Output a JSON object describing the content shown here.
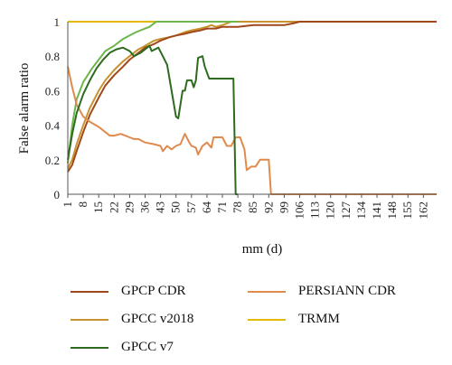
{
  "chart_data": {
    "type": "line",
    "ylabel": "False alarm ratio",
    "xlabel": "mm (d)",
    "ylim": [
      0,
      1
    ],
    "yticks": [
      "0",
      "0.2",
      "0.4",
      "0.6",
      "0.8",
      "1"
    ],
    "xticks": [
      "1",
      "8",
      "15",
      "22",
      "29",
      "36",
      "43",
      "50",
      "57",
      "64",
      "71",
      "78",
      "85",
      "92",
      "99",
      "106",
      "113",
      "120",
      "127",
      "134",
      "141",
      "148",
      "155",
      "162"
    ],
    "xlim": [
      1,
      168
    ],
    "grid": false,
    "legend_position": "bottom",
    "series": [
      {
        "name": "GPCP CDR",
        "color": "#a0481c",
        "points": [
          [
            1,
            0.13
          ],
          [
            3,
            0.17
          ],
          [
            5,
            0.25
          ],
          [
            8,
            0.36
          ],
          [
            11,
            0.46
          ],
          [
            15,
            0.56
          ],
          [
            18,
            0.63
          ],
          [
            22,
            0.69
          ],
          [
            26,
            0.74
          ],
          [
            29,
            0.78
          ],
          [
            33,
            0.82
          ],
          [
            36,
            0.85
          ],
          [
            40,
            0.87
          ],
          [
            43,
            0.89
          ],
          [
            47,
            0.91
          ],
          [
            50,
            0.92
          ],
          [
            54,
            0.93
          ],
          [
            57,
            0.94
          ],
          [
            61,
            0.95
          ],
          [
            64,
            0.96
          ],
          [
            68,
            0.96
          ],
          [
            71,
            0.97
          ],
          [
            78,
            0.97
          ],
          [
            85,
            0.98
          ],
          [
            92,
            0.98
          ],
          [
            99,
            0.98
          ],
          [
            103,
            0.99
          ],
          [
            106,
            1.0
          ],
          [
            168,
            1.0
          ]
        ]
      },
      {
        "name": "PERSIANN CDR",
        "color": "#e08a4c",
        "points": [
          [
            1,
            0.74
          ],
          [
            3,
            0.62
          ],
          [
            5,
            0.52
          ],
          [
            8,
            0.45
          ],
          [
            11,
            0.42
          ],
          [
            15,
            0.39
          ],
          [
            18,
            0.36
          ],
          [
            20,
            0.34
          ],
          [
            22,
            0.34
          ],
          [
            25,
            0.35
          ],
          [
            29,
            0.33
          ],
          [
            31,
            0.32
          ],
          [
            33,
            0.32
          ],
          [
            36,
            0.3
          ],
          [
            40,
            0.29
          ],
          [
            43,
            0.28
          ],
          [
            44,
            0.25
          ],
          [
            46,
            0.28
          ],
          [
            48,
            0.26
          ],
          [
            50,
            0.28
          ],
          [
            52,
            0.29
          ],
          [
            54,
            0.35
          ],
          [
            56,
            0.3
          ],
          [
            57,
            0.28
          ],
          [
            59,
            0.27
          ],
          [
            60,
            0.23
          ],
          [
            62,
            0.28
          ],
          [
            64,
            0.3
          ],
          [
            66,
            0.27
          ],
          [
            67,
            0.33
          ],
          [
            69,
            0.33
          ],
          [
            71,
            0.33
          ],
          [
            73,
            0.28
          ],
          [
            75,
            0.28
          ],
          [
            77,
            0.33
          ],
          [
            79,
            0.33
          ],
          [
            81,
            0.26
          ],
          [
            82,
            0.14
          ],
          [
            84,
            0.16
          ],
          [
            86,
            0.16
          ],
          [
            88,
            0.2
          ],
          [
            92,
            0.2
          ],
          [
            93,
            0.0
          ],
          [
            168,
            0.0
          ]
        ]
      },
      {
        "name": "GPCC v2018",
        "color": "#c8922e",
        "points": [
          [
            1,
            0.15
          ],
          [
            3,
            0.2
          ],
          [
            5,
            0.29
          ],
          [
            8,
            0.4
          ],
          [
            11,
            0.5
          ],
          [
            15,
            0.6
          ],
          [
            18,
            0.66
          ],
          [
            22,
            0.72
          ],
          [
            26,
            0.77
          ],
          [
            29,
            0.8
          ],
          [
            33,
            0.84
          ],
          [
            36,
            0.86
          ],
          [
            40,
            0.89
          ],
          [
            43,
            0.9
          ],
          [
            47,
            0.91
          ],
          [
            50,
            0.92
          ],
          [
            54,
            0.94
          ],
          [
            57,
            0.95
          ],
          [
            61,
            0.96
          ],
          [
            64,
            0.97
          ],
          [
            66,
            0.98
          ],
          [
            68,
            0.97
          ],
          [
            71,
            0.98
          ],
          [
            73,
            0.99
          ],
          [
            75,
            1.0
          ],
          [
            168,
            1.0
          ]
        ]
      },
      {
        "name": "TRMM",
        "color": "#e6b800",
        "points": [
          [
            1,
            1.0
          ],
          [
            168,
            1.0
          ]
        ]
      },
      {
        "name": "GPCC v7",
        "color": "#2e6b1e",
        "points": [
          [
            1,
            0.2
          ],
          [
            3,
            0.35
          ],
          [
            5,
            0.47
          ],
          [
            8,
            0.58
          ],
          [
            11,
            0.66
          ],
          [
            14,
            0.73
          ],
          [
            17,
            0.78
          ],
          [
            20,
            0.82
          ],
          [
            23,
            0.84
          ],
          [
            26,
            0.85
          ],
          [
            29,
            0.83
          ],
          [
            31,
            0.8
          ],
          [
            34,
            0.82
          ],
          [
            36,
            0.84
          ],
          [
            38,
            0.86
          ],
          [
            39,
            0.83
          ],
          [
            42,
            0.85
          ],
          [
            44,
            0.8
          ],
          [
            46,
            0.75
          ],
          [
            48,
            0.6
          ],
          [
            50,
            0.45
          ],
          [
            51,
            0.44
          ],
          [
            52,
            0.52
          ],
          [
            53,
            0.6
          ],
          [
            54,
            0.6
          ],
          [
            55,
            0.66
          ],
          [
            57,
            0.66
          ],
          [
            58,
            0.62
          ],
          [
            59,
            0.66
          ],
          [
            60,
            0.79
          ],
          [
            62,
            0.8
          ],
          [
            63,
            0.74
          ],
          [
            65,
            0.67
          ],
          [
            75,
            0.67
          ],
          [
            76,
            0.67
          ],
          [
            77,
            0.0
          ],
          [
            78,
            0.0
          ]
        ]
      },
      {
        "name": "",
        "color": "#6cb64c",
        "points": [
          [
            1,
            0.18
          ],
          [
            3,
            0.4
          ],
          [
            5,
            0.55
          ],
          [
            8,
            0.65
          ],
          [
            12,
            0.73
          ],
          [
            15,
            0.78
          ],
          [
            18,
            0.83
          ],
          [
            22,
            0.86
          ],
          [
            26,
            0.9
          ],
          [
            29,
            0.92
          ],
          [
            32,
            0.94
          ],
          [
            36,
            0.96
          ],
          [
            38,
            0.97
          ],
          [
            40,
            0.99
          ],
          [
            41,
            1.0
          ],
          [
            78,
            1.0
          ]
        ]
      }
    ]
  },
  "legend": [
    {
      "label": "GPCP CDR",
      "color": "#a0481c"
    },
    {
      "label": "PERSIANN CDR",
      "color": "#e08a4c"
    },
    {
      "label": "GPCC v2018",
      "color": "#c8922e"
    },
    {
      "label": "TRMM",
      "color": "#e6b800"
    },
    {
      "label": "GPCC v7",
      "color": "#2e6b1e"
    }
  ]
}
